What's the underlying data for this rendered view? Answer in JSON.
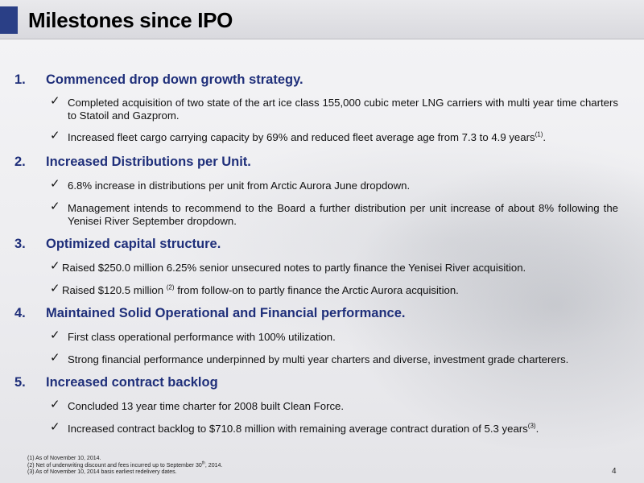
{
  "slide": {
    "title": "Milestones since IPO",
    "page_number": "4"
  },
  "sections": [
    {
      "number": "1.",
      "heading": "Commenced drop down growth strategy.",
      "items": [
        {
          "text": "Completed acquisition of two state of the art ice class 155,000 cubic meter LNG carriers with multi year time charters to Statoil and Gazprom."
        },
        {
          "text": "Increased fleet cargo carrying capacity by 69% and reduced fleet average age from 7.3 to 4.9 years",
          "sup": "(1)",
          "after": "."
        }
      ]
    },
    {
      "number": "2.",
      "heading": "Increased Distributions per Unit.",
      "items": [
        {
          "text": "6.8% increase in distributions per unit from Arctic Aurora June dropdown."
        },
        {
          "text": "Management intends to recommend to the Board a further distribution per unit increase of about 8% following the Yenisei River September dropdown."
        }
      ]
    },
    {
      "number": "3.",
      "heading": "Optimized capital structure.",
      "items": [
        {
          "text": "Raised $250.0 million 6.25% senior unsecured notes to partly finance the Yenisei River acquisition."
        },
        {
          "text": "Raised $120.5 million ",
          "sup": "(2)",
          "after": " from follow-on to partly finance the Arctic Aurora acquisition."
        }
      ]
    },
    {
      "number": "4.",
      "heading": "Maintained Solid Operational and Financial performance.",
      "items": [
        {
          "text": "First class operational performance with 100% utilization."
        },
        {
          "text": "Strong financial performance underpinned by multi year charters and diverse, investment grade charterers."
        }
      ]
    },
    {
      "number": "5.",
      "heading": "Increased contract backlog",
      "items": [
        {
          "text": "Concluded 13 year time charter for 2008 built Clean Force."
        },
        {
          "text": "Increased contract backlog to $710.8 million with remaining average contract duration of 5.3 years",
          "sup": "(3)",
          "after": "."
        }
      ]
    }
  ],
  "footnotes": {
    "f1": "(1) As of November 10, 2014.",
    "f2_pre": "(2) Net of underwriting discount and fees incurred up to September 30",
    "f2_sup": "th",
    "f2_post": ", 2014.",
    "f3": "(3) As of November 10, 2014 basis earliest redelivery dates."
  },
  "icons": {
    "check": "✓"
  }
}
